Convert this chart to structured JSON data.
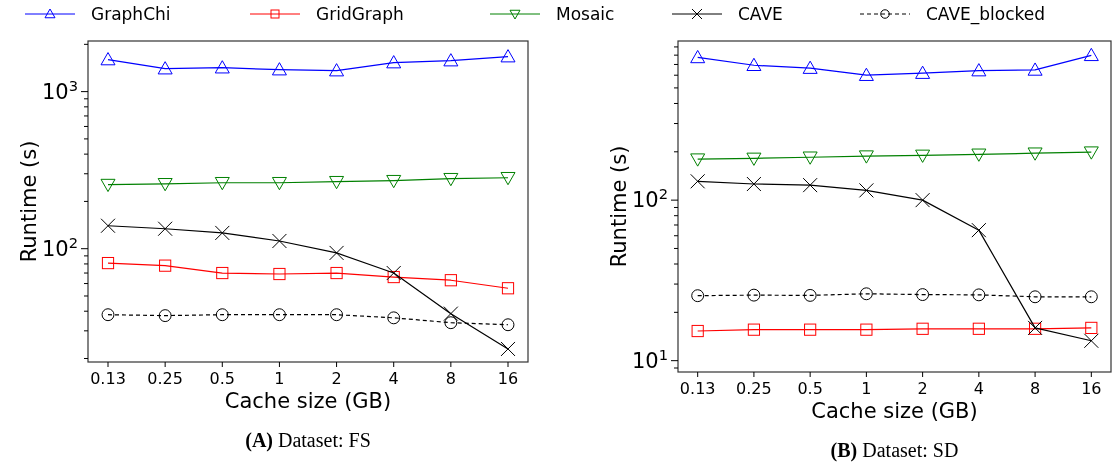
{
  "chart_data": [
    {
      "type": "line",
      "title": "(A) Dataset: FS",
      "xlabel": "Cache size (GB)",
      "ylabel": "Runtime (s)",
      "log": true,
      "legend": "top",
      "grid": false,
      "categories": [
        "0.13",
        "0.25",
        "0.5",
        "1",
        "2",
        "4",
        "8",
        "16"
      ],
      "ylim": [
        19,
        2100
      ],
      "yticks": [
        {
          "value": 20,
          "label": null
        },
        {
          "value": 30,
          "label": null
        },
        {
          "value": 40,
          "label": null
        },
        {
          "value": 50,
          "label": null
        },
        {
          "value": 60,
          "label": null
        },
        {
          "value": 70,
          "label": null
        },
        {
          "value": 80,
          "label": null
        },
        {
          "value": 90,
          "label": null
        },
        {
          "value": 100,
          "label": "10$^{2}$"
        },
        {
          "value": 200,
          "label": null
        },
        {
          "value": 300,
          "label": null
        },
        {
          "value": 400,
          "label": null
        },
        {
          "value": 500,
          "label": null
        },
        {
          "value": 600,
          "label": null
        },
        {
          "value": 700,
          "label": null
        },
        {
          "value": 800,
          "label": null
        },
        {
          "value": 900,
          "label": null
        },
        {
          "value": 1000,
          "label": "10$^{3}$"
        },
        {
          "value": 2000,
          "label": null
        }
      ],
      "series": [
        {
          "name": "GraphChi",
          "color": "#0000ff",
          "marker": "triangle",
          "line_style": "solid",
          "values": [
            1600,
            1400,
            1420,
            1380,
            1360,
            1530,
            1575,
            1670
          ]
        },
        {
          "name": "GridGraph",
          "color": "#ff0000",
          "marker": "square",
          "line_style": "solid",
          "values": [
            81,
            78,
            70,
            69,
            70,
            66,
            63,
            56
          ]
        },
        {
          "name": "Mosaic",
          "color": "#008000",
          "marker": "triangle-down",
          "line_style": "solid",
          "values": [
            256,
            259,
            263,
            263,
            267,
            271,
            279,
            283
          ]
        },
        {
          "name": "CAVE",
          "color": "#000000",
          "marker": "cross",
          "line_style": "solid",
          "values": [
            140,
            134,
            126,
            112,
            94,
            70,
            38.6,
            23
          ]
        },
        {
          "name": "CAVE_blocked",
          "color": "#000000",
          "marker": "circle",
          "line_style": "dashed",
          "values": [
            38,
            37.5,
            38,
            38,
            38,
            36.3,
            33.8,
            32.8
          ]
        }
      ]
    },
    {
      "type": "line",
      "title": "(B) Dataset: SD",
      "xlabel": "Cache size (GB)",
      "ylabel": "Runtime (s)",
      "log": true,
      "legend": "top",
      "grid": false,
      "categories": [
        "0.13",
        "0.25",
        "0.5",
        "1",
        "2",
        "4",
        "8",
        "16"
      ],
      "ylim": [
        8.5,
        980
      ],
      "yticks": [
        {
          "value": 9,
          "label": null
        },
        {
          "value": 10,
          "label": "10$^{1}$"
        },
        {
          "value": 20,
          "label": null
        },
        {
          "value": 30,
          "label": null
        },
        {
          "value": 40,
          "label": null
        },
        {
          "value": 50,
          "label": null
        },
        {
          "value": 60,
          "label": null
        },
        {
          "value": 70,
          "label": null
        },
        {
          "value": 80,
          "label": null
        },
        {
          "value": 90,
          "label": null
        },
        {
          "value": 100,
          "label": "10$^{2}$"
        },
        {
          "value": 200,
          "label": null
        },
        {
          "value": 300,
          "label": null
        },
        {
          "value": 400,
          "label": null
        },
        {
          "value": 500,
          "label": null
        },
        {
          "value": 600,
          "label": null
        },
        {
          "value": 700,
          "label": null
        },
        {
          "value": 800,
          "label": null
        },
        {
          "value": 900,
          "label": null
        }
      ],
      "series": [
        {
          "name": "GraphChi",
          "color": "#0000ff",
          "marker": "triangle",
          "line_style": "solid",
          "values": [
            774,
            692,
            664,
            600,
            618,
            641,
            647,
            798
          ]
        },
        {
          "name": "GridGraph",
          "color": "#ff0000",
          "marker": "square",
          "line_style": "solid",
          "values": [
            15.3,
            15.6,
            15.6,
            15.6,
            15.8,
            15.8,
            15.8,
            16
          ]
        },
        {
          "name": "Mosaic",
          "color": "#008000",
          "marker": "triangle-down",
          "line_style": "solid",
          "values": [
            180,
            182,
            185,
            188,
            190,
            193,
            196,
            199
          ]
        },
        {
          "name": "CAVE",
          "color": "#000000",
          "marker": "cross",
          "line_style": "solid",
          "values": [
            131,
            126,
            124,
            115,
            100,
            65,
            16,
            13.3
          ]
        },
        {
          "name": "CAVE_blocked",
          "color": "#000000",
          "marker": "circle",
          "line_style": "dashed",
          "values": [
            25.4,
            25.6,
            25.5,
            26.1,
            25.8,
            25.7,
            25,
            25
          ]
        }
      ]
    }
  ]
}
